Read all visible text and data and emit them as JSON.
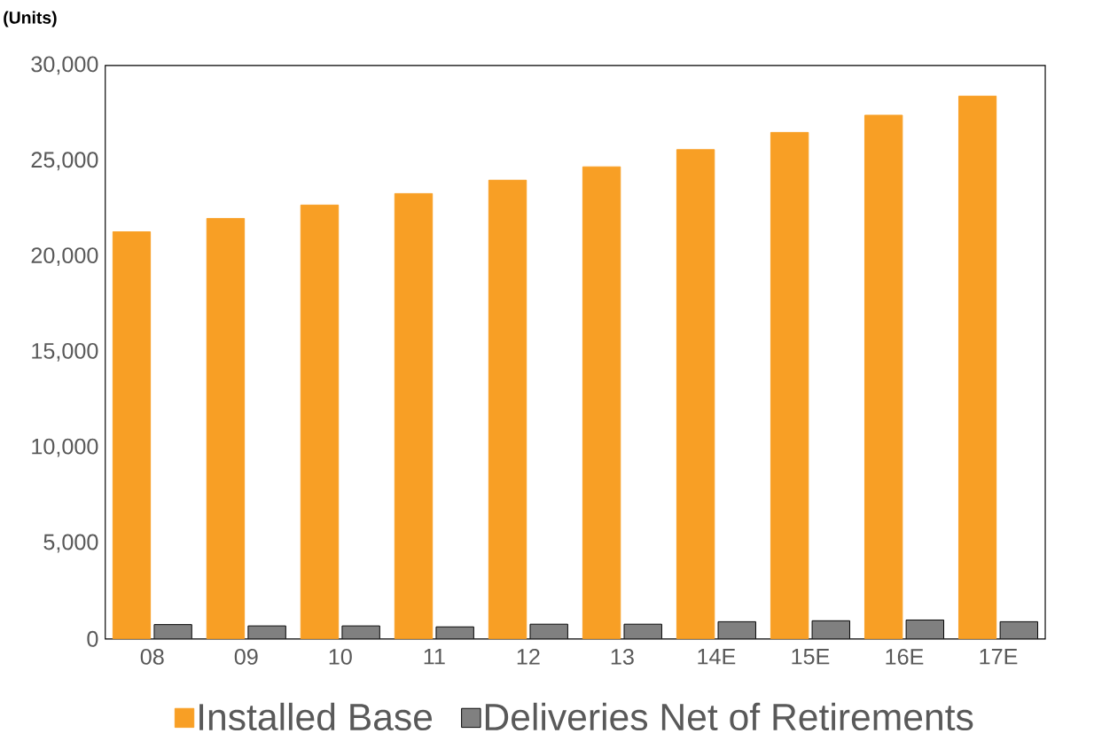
{
  "chart_data": {
    "type": "bar",
    "ylabel": "(Units)",
    "categories": [
      "08",
      "09",
      "10",
      "11",
      "12",
      "13",
      "14E",
      "15E",
      "16E",
      "17E"
    ],
    "series": [
      {
        "name": "Installed Base",
        "color": "#f89f25",
        "values": [
          21300,
          22000,
          22700,
          23300,
          24000,
          24700,
          25600,
          26500,
          27400,
          28400
        ]
      },
      {
        "name": "Deliveries Net of Retirements",
        "color": "#808080",
        "values": [
          750,
          680,
          680,
          630,
          770,
          770,
          900,
          950,
          990,
          900
        ]
      }
    ],
    "ylim": [
      0,
      30000
    ],
    "yticks": [
      {
        "value": 0,
        "label": "0"
      },
      {
        "value": 5000,
        "label": "5,000"
      },
      {
        "value": 10000,
        "label": "10,000"
      },
      {
        "value": 15000,
        "label": "15,000"
      },
      {
        "value": 20000,
        "label": "20,000"
      },
      {
        "value": 25000,
        "label": "25,000"
      },
      {
        "value": 30000,
        "label": "30,000"
      }
    ],
    "legend": "bottom",
    "grid": false
  }
}
